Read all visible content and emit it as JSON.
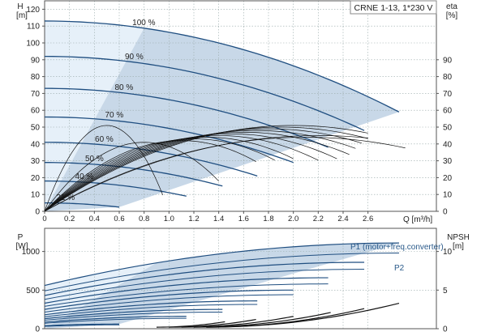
{
  "chart_data": [
    {
      "type": "line",
      "title_box": "CRNE 1-13, 1*230 V",
      "left_axis": {
        "label_line1": "H",
        "label_line2": "[m]",
        "ylim": [
          0,
          125
        ],
        "ticks": [
          0,
          10,
          20,
          30,
          40,
          50,
          60,
          70,
          80,
          90,
          100,
          110,
          120
        ]
      },
      "right_axis": {
        "label_line1": "eta",
        "label_line2": "[%]",
        "ylim": [
          0,
          125
        ],
        "ticks": [
          0,
          10,
          20,
          30,
          40,
          50,
          60,
          70,
          80,
          90
        ]
      },
      "x_axis": {
        "label": "Q [m³/h]",
        "xlim": [
          0,
          3.15
        ],
        "ticks": [
          "0",
          "0.2",
          "0.4",
          "0.6",
          "0.8",
          "1.0",
          "1.2",
          "1.4",
          "1.6",
          "1.8",
          "2.0",
          "2.2",
          "2.4",
          "2.6"
        ]
      },
      "speed_curves": [
        {
          "label": "100 %",
          "shutoff_head": 113,
          "q_max": 2.85,
          "head_at_q_max": 59
        },
        {
          "label": "90 %",
          "shutoff_head": 92,
          "q_max": 2.57,
          "head_at_q_max": 48
        },
        {
          "label": "80 %",
          "shutoff_head": 73,
          "q_max": 2.28,
          "head_at_q_max": 38
        },
        {
          "label": "70 %",
          "shutoff_head": 56,
          "q_max": 2.0,
          "head_at_q_max": 29
        },
        {
          "label": "60 %",
          "shutoff_head": 41,
          "q_max": 1.71,
          "head_at_q_max": 21
        },
        {
          "label": "50 %",
          "shutoff_head": 29,
          "q_max": 1.43,
          "head_at_q_max": 15
        },
        {
          "label": "40 %",
          "shutoff_head": 18,
          "q_max": 1.14,
          "head_at_q_max": 9
        },
        {
          "label": "21 %",
          "shutoff_head": 5,
          "q_max": 0.6,
          "head_at_q_max": 2.5
        }
      ],
      "efficiency_curves": [
        {
          "peak": 51,
          "q_peak": 2.0,
          "q_max": 2.6
        },
        {
          "peak": 50,
          "q_peak": 1.9,
          "q_max": 2.6
        },
        {
          "peak": 49,
          "q_peak": 1.8,
          "q_max": 2.55
        },
        {
          "peak": 48,
          "q_peak": 1.7,
          "q_max": 2.5
        },
        {
          "peak": 47,
          "q_peak": 1.6,
          "q_max": 2.45
        },
        {
          "peak": 46,
          "q_peak": 1.5,
          "q_max": 2.35
        },
        {
          "peak": 45,
          "q_peak": 1.4,
          "q_max": 2.2
        },
        {
          "peak": 44,
          "q_peak": 1.3,
          "q_max": 2.0
        },
        {
          "peak": 43,
          "q_peak": 1.2,
          "q_max": 1.85
        },
        {
          "peak": 42,
          "q_peak": 1.1,
          "q_max": 1.7
        },
        {
          "peak": 41,
          "q_peak": 0.8,
          "q_max": 1.4
        },
        {
          "peak": 51,
          "q_peak": 0.5,
          "q_max": 0.95
        },
        {
          "peak": 44,
          "q_peak": 2.1,
          "q_max": 2.9
        },
        {
          "peak": 45,
          "q_peak": 2.2,
          "q_max": 2.6
        }
      ]
    },
    {
      "type": "line",
      "left_axis": {
        "label_line1": "P",
        "label_line2": "[W]",
        "ylim": [
          0,
          1300
        ],
        "ticks": [
          0,
          500,
          1000
        ]
      },
      "right_axis": {
        "label_line1": "NPSH",
        "label_line2": "[m]",
        "ylim": [
          0,
          13
        ],
        "ticks": [
          0,
          5,
          10
        ]
      },
      "xlim": [
        0,
        3.15
      ],
      "legend_p1": "P1 (motor+freq.converter)",
      "legend_p2": "P2",
      "p1_curves": [
        {
          "p_at_0": 560,
          "q_max": 2.85,
          "p_at_q_max": 1110
        },
        {
          "p_at_0": 430,
          "q_max": 2.57,
          "p_at_q_max": 860
        },
        {
          "p_at_0": 330,
          "q_max": 2.28,
          "p_at_q_max": 660
        },
        {
          "p_at_0": 250,
          "q_max": 2.0,
          "p_at_q_max": 500
        },
        {
          "p_at_0": 180,
          "q_max": 1.71,
          "p_at_q_max": 360
        },
        {
          "p_at_0": 130,
          "q_max": 1.43,
          "p_at_q_max": 250
        },
        {
          "p_at_0": 85,
          "q_max": 1.14,
          "p_at_q_max": 160
        },
        {
          "p_at_0": 40,
          "q_max": 0.6,
          "p_at_q_max": 60
        }
      ],
      "p2_curves": [
        {
          "p_at_0": 490,
          "q_max": 2.85,
          "p_at_q_max": 980
        },
        {
          "p_at_0": 380,
          "q_max": 2.57,
          "p_at_q_max": 770
        },
        {
          "p_at_0": 290,
          "q_max": 2.28,
          "p_at_q_max": 580
        },
        {
          "p_at_0": 215,
          "q_max": 2.0,
          "p_at_q_max": 440
        },
        {
          "p_at_0": 155,
          "q_max": 1.71,
          "p_at_q_max": 315
        },
        {
          "p_at_0": 110,
          "q_max": 1.43,
          "p_at_q_max": 215
        },
        {
          "p_at_0": 70,
          "q_max": 1.14,
          "p_at_q_max": 135
        },
        {
          "p_at_0": 30,
          "q_max": 0.6,
          "p_at_q_max": 50
        }
      ],
      "npsh_curves": [
        {
          "q_start": 1.3,
          "q_end": 2.85,
          "npsh_start": 0.2,
          "npsh_end": 3.3
        },
        {
          "q_start": 1.3,
          "q_end": 2.57,
          "npsh_start": 0.2,
          "npsh_end": 2.6
        },
        {
          "q_start": 1.2,
          "q_end": 2.3,
          "npsh_start": 0.2,
          "npsh_end": 2.1
        },
        {
          "q_start": 1.1,
          "q_end": 2.0,
          "npsh_start": 0.2,
          "npsh_end": 1.6
        },
        {
          "q_start": 1.0,
          "q_end": 1.7,
          "npsh_start": 0.2,
          "npsh_end": 1.2
        },
        {
          "q_start": 0.9,
          "q_end": 1.45,
          "npsh_start": 0.2,
          "npsh_end": 0.9
        }
      ]
    }
  ]
}
